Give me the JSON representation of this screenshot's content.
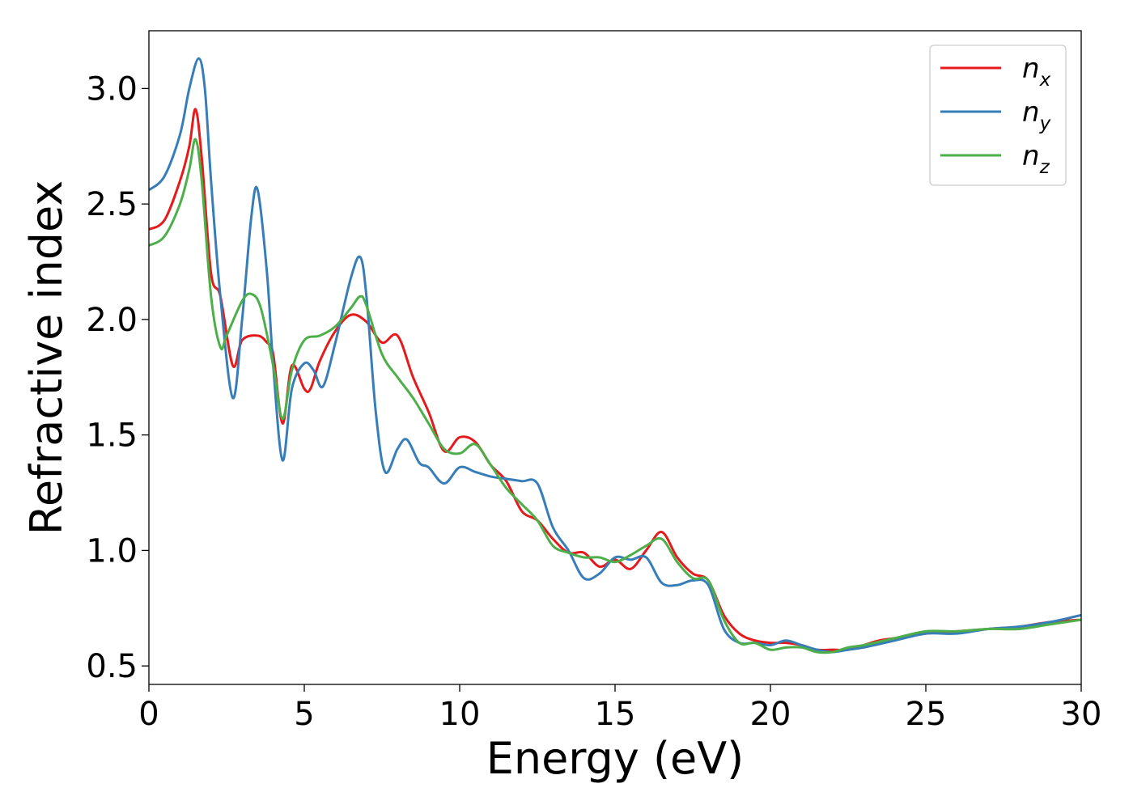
{
  "chart_data": {
    "type": "line",
    "xlabel": "Energy (eV)",
    "ylabel": "Refractive index",
    "xlim": [
      0,
      30
    ],
    "ylim": [
      0.42,
      3.25
    ],
    "xticks": [
      0,
      5,
      10,
      15,
      20,
      25,
      30
    ],
    "xtick_labels": [
      "0",
      "5",
      "10",
      "15",
      "20",
      "25",
      "30"
    ],
    "yticks": [
      0.5,
      1.0,
      1.5,
      2.0,
      2.5,
      3.0
    ],
    "ytick_labels": [
      "0.5",
      "1.0",
      "1.5",
      "2.0",
      "2.5",
      "3.0"
    ],
    "grid": false,
    "legend_position": "top-right",
    "series": [
      {
        "name": "n_x",
        "label_base": "n",
        "label_sub": "x",
        "color": "#e41a1c",
        "x": [
          0,
          0.5,
          1.0,
          1.3,
          1.5,
          1.7,
          2.0,
          2.3,
          2.7,
          3.0,
          3.5,
          3.8,
          4.0,
          4.3,
          4.6,
          5.0,
          5.2,
          5.5,
          6.0,
          6.5,
          7.0,
          7.5,
          8.0,
          8.5,
          9.0,
          9.5,
          10.0,
          10.5,
          11.0,
          11.5,
          12.0,
          12.5,
          13.0,
          13.5,
          14.0,
          14.5,
          15.0,
          15.5,
          16.0,
          16.5,
          17.0,
          17.5,
          18.0,
          18.5,
          19.0,
          19.5,
          20.0,
          20.5,
          21.0,
          21.5,
          22.0,
          22.5,
          23.0,
          23.5,
          24.0,
          24.5,
          25.0,
          26.0,
          27.0,
          28.0,
          29.0,
          30.0
        ],
        "y": [
          2.39,
          2.43,
          2.6,
          2.75,
          2.91,
          2.7,
          2.2,
          2.1,
          1.8,
          1.91,
          1.93,
          1.9,
          1.85,
          1.55,
          1.8,
          1.7,
          1.7,
          1.82,
          1.95,
          2.02,
          1.99,
          1.9,
          1.93,
          1.75,
          1.6,
          1.43,
          1.49,
          1.47,
          1.37,
          1.3,
          1.17,
          1.13,
          1.05,
          0.99,
          0.99,
          0.93,
          0.96,
          0.92,
          1.0,
          1.08,
          0.97,
          0.9,
          0.87,
          0.72,
          0.64,
          0.61,
          0.6,
          0.6,
          0.59,
          0.57,
          0.57,
          0.57,
          0.59,
          0.61,
          0.62,
          0.63,
          0.64,
          0.65,
          0.66,
          0.67,
          0.69,
          0.7
        ]
      },
      {
        "name": "n_y",
        "label_base": "n",
        "label_sub": "y",
        "color": "#377eb8",
        "x": [
          0,
          0.5,
          1.0,
          1.3,
          1.6,
          1.8,
          2.0,
          2.3,
          2.7,
          3.0,
          3.3,
          3.5,
          3.8,
          4.0,
          4.3,
          4.6,
          5.0,
          5.3,
          5.6,
          6.0,
          6.5,
          6.8,
          7.0,
          7.3,
          7.6,
          8.0,
          8.3,
          8.7,
          9.0,
          9.5,
          10.0,
          10.5,
          11.0,
          11.5,
          12.0,
          12.5,
          13.0,
          13.5,
          14.0,
          14.5,
          15.0,
          15.5,
          16.0,
          16.5,
          17.0,
          17.5,
          18.0,
          18.5,
          19.0,
          19.5,
          20.0,
          20.5,
          21.0,
          21.5,
          22.0,
          22.5,
          23.0,
          24.0,
          25.0,
          26.0,
          27.0,
          28.0,
          29.0,
          30.0
        ],
        "y": [
          2.56,
          2.62,
          2.8,
          3.0,
          3.13,
          3.0,
          2.6,
          2.1,
          1.66,
          2.0,
          2.45,
          2.56,
          2.2,
          1.8,
          1.39,
          1.7,
          1.81,
          1.78,
          1.71,
          1.9,
          2.18,
          2.27,
          2.1,
          1.6,
          1.34,
          1.44,
          1.48,
          1.38,
          1.36,
          1.29,
          1.36,
          1.34,
          1.32,
          1.31,
          1.3,
          1.29,
          1.1,
          1.0,
          0.88,
          0.9,
          0.97,
          0.96,
          0.97,
          0.86,
          0.85,
          0.87,
          0.85,
          0.66,
          0.6,
          0.6,
          0.59,
          0.61,
          0.59,
          0.57,
          0.56,
          0.57,
          0.58,
          0.61,
          0.64,
          0.64,
          0.66,
          0.67,
          0.69,
          0.72
        ]
      },
      {
        "name": "n_z",
        "label_base": "n",
        "label_sub": "z",
        "color": "#4daf4a",
        "x": [
          0,
          0.5,
          1.0,
          1.3,
          1.5,
          1.7,
          2.0,
          2.3,
          2.5,
          3.0,
          3.3,
          3.6,
          4.0,
          4.3,
          4.6,
          5.0,
          5.5,
          6.0,
          6.5,
          6.8,
          7.0,
          7.5,
          8.0,
          8.5,
          9.0,
          9.5,
          10.0,
          10.5,
          11.0,
          11.5,
          12.0,
          12.5,
          13.0,
          13.5,
          14.0,
          14.5,
          15.0,
          15.5,
          16.0,
          16.5,
          17.0,
          17.5,
          18.0,
          18.5,
          19.0,
          19.5,
          20.0,
          20.5,
          21.0,
          21.5,
          22.0,
          22.5,
          23.0,
          24.0,
          25.0,
          26.0,
          27.0,
          28.0,
          29.0,
          30.0
        ],
        "y": [
          2.32,
          2.36,
          2.5,
          2.65,
          2.78,
          2.6,
          2.1,
          1.88,
          1.93,
          2.08,
          2.11,
          2.05,
          1.8,
          1.57,
          1.78,
          1.91,
          1.93,
          1.97,
          2.05,
          2.1,
          2.06,
          1.85,
          1.75,
          1.66,
          1.55,
          1.44,
          1.42,
          1.46,
          1.37,
          1.27,
          1.2,
          1.13,
          1.02,
          0.99,
          0.97,
          0.97,
          0.95,
          0.98,
          1.02,
          1.05,
          0.95,
          0.88,
          0.87,
          0.7,
          0.6,
          0.6,
          0.57,
          0.58,
          0.58,
          0.56,
          0.56,
          0.58,
          0.59,
          0.62,
          0.65,
          0.65,
          0.66,
          0.66,
          0.68,
          0.7
        ]
      }
    ]
  }
}
